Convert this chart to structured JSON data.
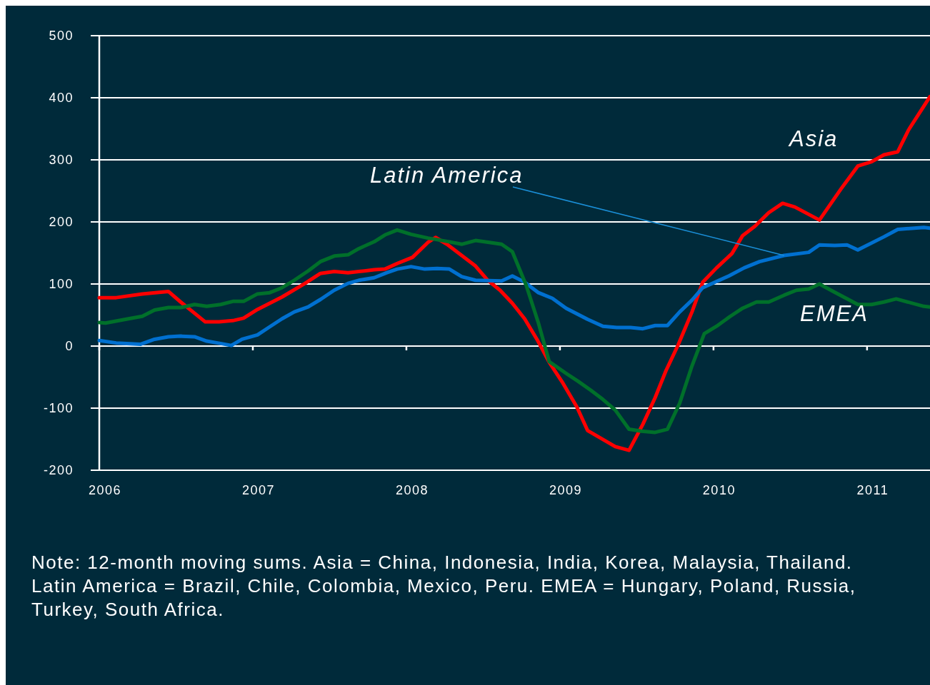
{
  "chart_data": {
    "type": "line",
    "xlim": [
      2006,
      2011.41
    ],
    "xticks": [
      2006,
      2007,
      2008,
      2009,
      2010,
      2011
    ],
    "ylim": [
      -200,
      500
    ],
    "yticks": [
      -200,
      -100,
      0,
      100,
      200,
      300,
      400,
      500
    ],
    "grid": "y",
    "legend": false,
    "marker": "none",
    "line_style": "solid",
    "series": [
      {
        "name": "Asia",
        "color": "#ff0000",
        "x": [
          2006.0,
          2006.11,
          2006.28,
          2006.45,
          2006.53,
          2006.69,
          2006.78,
          2006.87,
          2006.94,
          2007.03,
          2007.19,
          2007.34,
          2007.44,
          2007.53,
          2007.62,
          2007.69,
          2007.79,
          2007.86,
          2007.94,
          2008.04,
          2008.14,
          2008.19,
          2008.27,
          2008.36,
          2008.45,
          2008.53,
          2008.61,
          2008.69,
          2008.77,
          2008.85,
          2008.93,
          2009.02,
          2009.11,
          2009.18,
          2009.27,
          2009.36,
          2009.45,
          2009.54,
          2009.62,
          2009.69,
          2009.77,
          2009.86,
          2009.93,
          2010.02,
          2010.12,
          2010.19,
          2010.27,
          2010.36,
          2010.45,
          2010.53,
          2010.69,
          2010.83,
          2010.94,
          2011.03,
          2011.11,
          2011.2,
          2011.27,
          2011.41
        ],
        "values": [
          78,
          78,
          84,
          88,
          71,
          39,
          39,
          41,
          45,
          59,
          79,
          101,
          117,
          120,
          118,
          120,
          123,
          124,
          133,
          143,
          167,
          175,
          163,
          146,
          129,
          106,
          90,
          69,
          44,
          11,
          -26,
          -60,
          -98,
          -136,
          -149,
          -162,
          -168,
          -126,
          -83,
          -40,
          2,
          55,
          103,
          126,
          149,
          178,
          193,
          215,
          230,
          224,
          203,
          253,
          290,
          297,
          308,
          313,
          348,
          402
        ]
      },
      {
        "name": "Latin America",
        "color": "#0070d0",
        "x": [
          2006.0,
          2006.11,
          2006.27,
          2006.36,
          2006.45,
          2006.53,
          2006.62,
          2006.7,
          2006.77,
          2006.86,
          2006.93,
          2007.03,
          2007.11,
          2007.19,
          2007.27,
          2007.36,
          2007.44,
          2007.53,
          2007.62,
          2007.69,
          2007.79,
          2007.87,
          2007.94,
          2008.03,
          2008.12,
          2008.2,
          2008.28,
          2008.36,
          2008.45,
          2008.62,
          2008.69,
          2008.77,
          2008.86,
          2008.95,
          2009.04,
          2009.18,
          2009.28,
          2009.37,
          2009.46,
          2009.54,
          2009.62,
          2009.7,
          2009.78,
          2009.86,
          2009.93,
          2010.1,
          2010.2,
          2010.3,
          2010.46,
          2010.62,
          2010.69,
          2010.79,
          2010.87,
          2010.94,
          2011.11,
          2011.2,
          2011.37,
          2011.41
        ],
        "values": [
          9,
          5,
          3,
          11,
          15,
          16,
          15,
          8,
          5,
          1,
          11,
          18,
          31,
          44,
          55,
          63,
          75,
          90,
          101,
          106,
          110,
          118,
          124,
          128,
          124,
          125,
          124,
          112,
          106,
          105,
          113,
          103,
          86,
          77,
          61,
          43,
          32,
          30,
          30,
          28,
          33,
          33,
          55,
          74,
          94,
          113,
          126,
          136,
          146,
          151,
          163,
          162,
          163,
          155,
          176,
          188,
          191,
          190
        ]
      },
      {
        "name": "EMEA",
        "color": "#00702a",
        "x": [
          2006.0,
          2006.04,
          2006.19,
          2006.28,
          2006.36,
          2006.45,
          2006.53,
          2006.62,
          2006.7,
          2006.79,
          2006.87,
          2006.94,
          2007.03,
          2007.11,
          2007.19,
          2007.27,
          2007.36,
          2007.44,
          2007.53,
          2007.62,
          2007.69,
          2007.79,
          2007.86,
          2007.94,
          2008.03,
          2008.14,
          2008.28,
          2008.36,
          2008.45,
          2008.54,
          2008.62,
          2008.69,
          2008.78,
          2008.86,
          2008.93,
          2009.04,
          2009.12,
          2009.2,
          2009.28,
          2009.36,
          2009.45,
          2009.53,
          2009.62,
          2009.7,
          2009.78,
          2009.86,
          2009.94,
          2010.02,
          2010.11,
          2010.19,
          2010.28,
          2010.36,
          2010.46,
          2010.54,
          2010.62,
          2010.69,
          2010.78,
          2010.94,
          2011.03,
          2011.11,
          2011.19,
          2011.37,
          2011.41
        ],
        "values": [
          38,
          37,
          44,
          48,
          58,
          62,
          62,
          67,
          64,
          67,
          72,
          72,
          84,
          86,
          94,
          106,
          121,
          136,
          145,
          147,
          157,
          168,
          179,
          187,
          180,
          174,
          168,
          164,
          170,
          167,
          164,
          152,
          98,
          37,
          -25,
          -44,
          -57,
          -71,
          -86,
          -103,
          -134,
          -137,
          -139,
          -134,
          -92,
          -32,
          20,
          32,
          48,
          61,
          71,
          71,
          82,
          90,
          92,
          100,
          88,
          67,
          67,
          71,
          76,
          64,
          63
        ]
      }
    ],
    "annotations": [
      "Note: 12-month moving sums. Asia = China, Indonesia, India, Korea, Malaysia, Thailand. Latin America = Brazil, Chile, Colombia, Mexico, Peru. EMEA = Hungary, Poland, Russia, Turkey, South Africa."
    ]
  }
}
